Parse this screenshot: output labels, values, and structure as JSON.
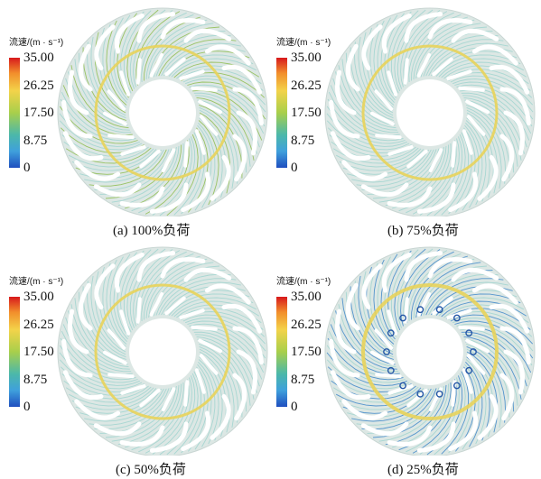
{
  "colorbar": {
    "title": "流速/(m · s⁻¹)",
    "ticks": [
      "35.00",
      "26.25",
      "17.50",
      "8.75",
      "0"
    ]
  },
  "panels": [
    {
      "caption": "(a) 100%负荷",
      "load_pct": 100
    },
    {
      "caption": "(b) 75%负荷",
      "load_pct": 75
    },
    {
      "caption": "(c) 50%负荷",
      "load_pct": 50
    },
    {
      "caption": "(d) 25%负荷",
      "load_pct": 25
    }
  ],
  "colors": {
    "disc": "#dce7e4",
    "streak_light": "#9fd3cf",
    "streak_green": "#8ebc4f",
    "streak_blue": "#3d86c9",
    "ring": "#e8d35a",
    "blade": "#ffffff"
  }
}
